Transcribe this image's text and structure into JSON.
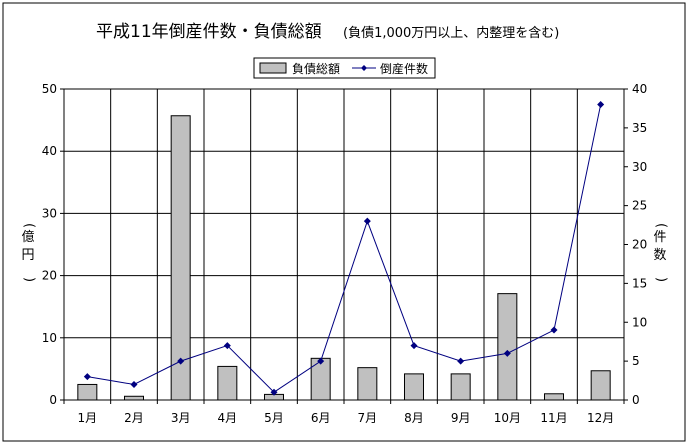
{
  "chart_data": {
    "type": "bar",
    "title": "平成11年倒産件数・負債総額",
    "subtitle": "(負債1,000万円以上、内整理を含む)",
    "categories": [
      "1月",
      "2月",
      "3月",
      "4月",
      "5月",
      "6月",
      "7月",
      "8月",
      "9月",
      "10月",
      "11月",
      "12月"
    ],
    "series": [
      {
        "name": "負債総額",
        "type": "bar",
        "axis": "left",
        "color": "#c0c0c0",
        "values": [
          2.5,
          0.6,
          45.7,
          5.4,
          0.9,
          6.7,
          5.2,
          4.2,
          4.2,
          17.1,
          1.0,
          4.7
        ]
      },
      {
        "name": "倒産件数",
        "type": "line",
        "axis": "right",
        "color": "#000080",
        "values": [
          3,
          2,
          5,
          7,
          1,
          5,
          23,
          7,
          5,
          6,
          9,
          38
        ]
      }
    ],
    "ylabel_left": "(億円)",
    "ylabel_right": "(件数)",
    "ylim_left": [
      0,
      50
    ],
    "yticks_left": [
      0,
      10,
      20,
      30,
      40,
      50
    ],
    "ylim_right": [
      0,
      40
    ],
    "yticks_right": [
      0,
      5,
      10,
      15,
      20,
      25,
      30,
      35,
      40
    ],
    "grid": true,
    "legend_position": "top-center"
  }
}
